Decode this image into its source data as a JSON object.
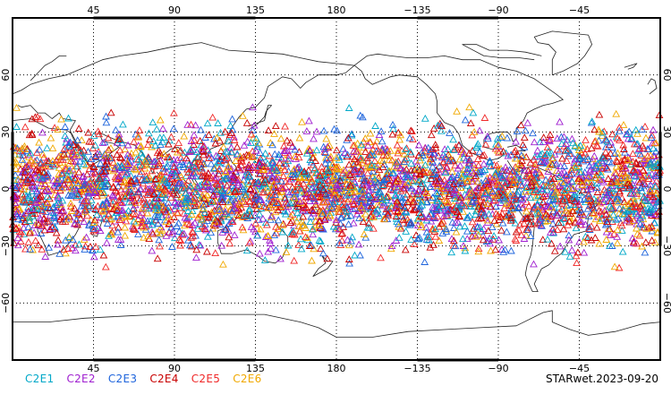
{
  "map": {
    "projection": "cylindrical-equidistant",
    "center_lon": 180,
    "lon_range": [
      0,
      360
    ],
    "lat_range": [
      -90,
      90
    ],
    "grid": true,
    "lon_ticks": [
      {
        "lon": 45,
        "label": "45"
      },
      {
        "lon": 90,
        "label": "90"
      },
      {
        "lon": 135,
        "label": "135"
      },
      {
        "lon": 180,
        "label": "180"
      },
      {
        "lon": 225,
        "label": "−135"
      },
      {
        "lon": 270,
        "label": "−90"
      },
      {
        "lon": 315,
        "label": "−45"
      }
    ],
    "lat_ticks": [
      {
        "lat": 60,
        "label": "60"
      },
      {
        "lat": 30,
        "label": "30"
      },
      {
        "lat": 0,
        "label": "0"
      },
      {
        "lat": -30,
        "label": "−30"
      },
      {
        "lat": -60,
        "label": "−60"
      }
    ],
    "marker": "open-triangle",
    "observation_lat_band": [
      -45,
      45
    ]
  },
  "legend": {
    "placement": "bottom-left",
    "series": [
      {
        "name": "C2E1",
        "color": "#00a8c8"
      },
      {
        "name": "C2E2",
        "color": "#a020d0"
      },
      {
        "name": "C2E3",
        "color": "#1e64dc"
      },
      {
        "name": "C2E4",
        "color": "#c80000"
      },
      {
        "name": "C2E5",
        "color": "#f02828"
      },
      {
        "name": "C2E6",
        "color": "#f0a800"
      }
    ]
  },
  "caption": "STARwet.2023-09-20"
}
